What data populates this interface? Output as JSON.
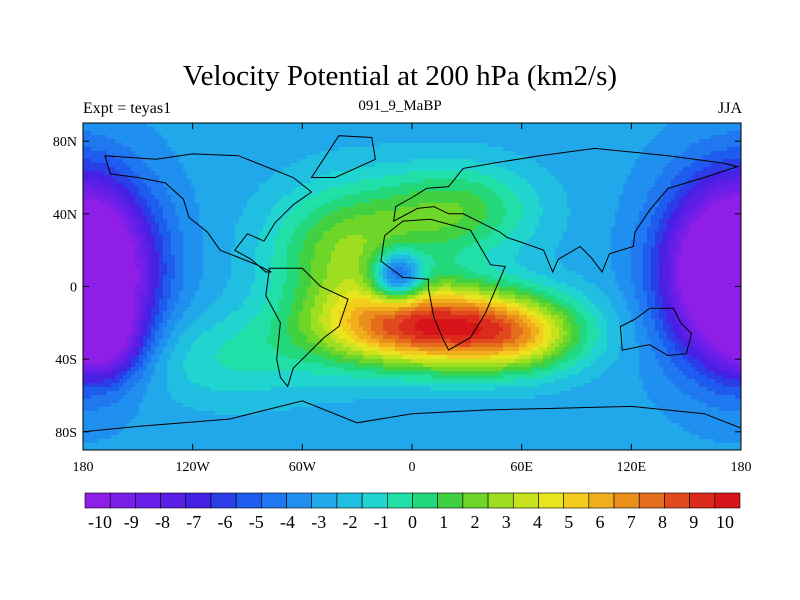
{
  "chart_data": {
    "type": "heatmap",
    "title": "Velocity Potential at 200 hPa (km2/s)",
    "left_subtitle": "Expt = teyas1",
    "center_subtitle": "091_9_MaBP",
    "right_subtitle": "JJA",
    "x_tick_labels": [
      "180",
      "120W",
      "60W",
      "0",
      "60E",
      "120E",
      "180"
    ],
    "x_ticks": [
      -180,
      -120,
      -60,
      0,
      60,
      120,
      180
    ],
    "y_tick_labels": [
      "80N",
      "40N",
      "0",
      "40S",
      "80S"
    ],
    "y_ticks": [
      80,
      40,
      0,
      -40,
      -80
    ],
    "xlim": [
      -180,
      180
    ],
    "ylim": [
      -90,
      90
    ],
    "colorbar": {
      "labels": [
        "-10",
        "-9",
        "-8",
        "-7",
        "-6",
        "-5",
        "-4",
        "-3",
        "-2",
        "-1",
        "0",
        "1",
        "2",
        "3",
        "4",
        "5",
        "6",
        "7",
        "8",
        "9",
        "10"
      ],
      "levels": [
        -10,
        -9,
        -8,
        -7,
        -6,
        -5,
        -4,
        -3,
        -2,
        -1,
        0,
        1,
        2,
        3,
        4,
        5,
        6,
        7,
        8,
        9,
        10
      ],
      "colors": [
        "#8f1fe6",
        "#7b1ee8",
        "#6a1ee8",
        "#5a1fe6",
        "#4620e4",
        "#2a3ee8",
        "#1e5cf0",
        "#1f78f0",
        "#1f90f0",
        "#20a8ea",
        "#20bfe2",
        "#20d4cf",
        "#20e0a8",
        "#22d87a",
        "#40d040",
        "#6ed628",
        "#9ede20",
        "#c8e21e",
        "#e8e41e",
        "#f4cc1e",
        "#f0ae1c",
        "#ea8e1c",
        "#e46e1c",
        "#e04a1c",
        "#dc2a1c",
        "#d8141a"
      ]
    },
    "field_centers": [
      {
        "lon": 10,
        "lat": -22,
        "value": 9.5
      },
      {
        "lon": 55,
        "lat": -28,
        "value": 6
      },
      {
        "lon": -40,
        "lat": 25,
        "value": 2
      },
      {
        "lon": 20,
        "lat": 45,
        "value": 3
      },
      {
        "lon": -10,
        "lat": 5,
        "value": -2.5
      },
      {
        "lon": 175,
        "lat": 5,
        "value": -10
      },
      {
        "lon": -175,
        "lat": 20,
        "value": -10
      },
      {
        "lon": -170,
        "lat": -30,
        "value": -7
      }
    ]
  }
}
